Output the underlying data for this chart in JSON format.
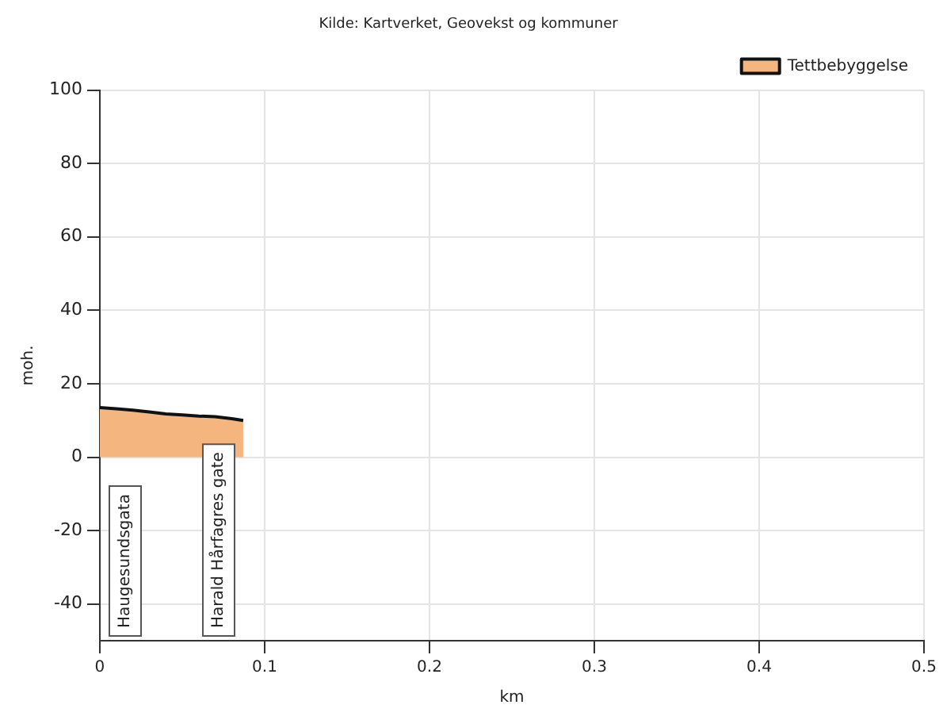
{
  "chart_data": {
    "type": "area",
    "title": "Kilde: Kartverket, Geovekst og kommuner",
    "xlabel": "km",
    "ylabel": "moh.",
    "x": [
      0,
      0.01,
      0.02,
      0.03,
      0.04,
      0.05,
      0.06,
      0.07,
      0.08,
      0.087
    ],
    "series": [
      {
        "name": "Tettbebyggelse",
        "type": "area",
        "color": "#f5b57e",
        "values": [
          13.5,
          13.2,
          12.8,
          12.3,
          11.8,
          11.5,
          11.2,
          11.0,
          10.5,
          10.0
        ]
      }
    ],
    "xlim": [
      0,
      0.5
    ],
    "xticks": [
      0,
      0.1,
      0.2,
      0.3,
      0.4,
      0.5
    ],
    "ylim": [
      -50,
      100
    ],
    "yticks": [
      -40,
      -20,
      0,
      20,
      40,
      60,
      80,
      100
    ],
    "annotations": [
      "Haugesundsgata",
      "Harald Hårfagres gate"
    ],
    "grid": true,
    "legend": "top right",
    "marker": "none",
    "line_style": "solid"
  }
}
